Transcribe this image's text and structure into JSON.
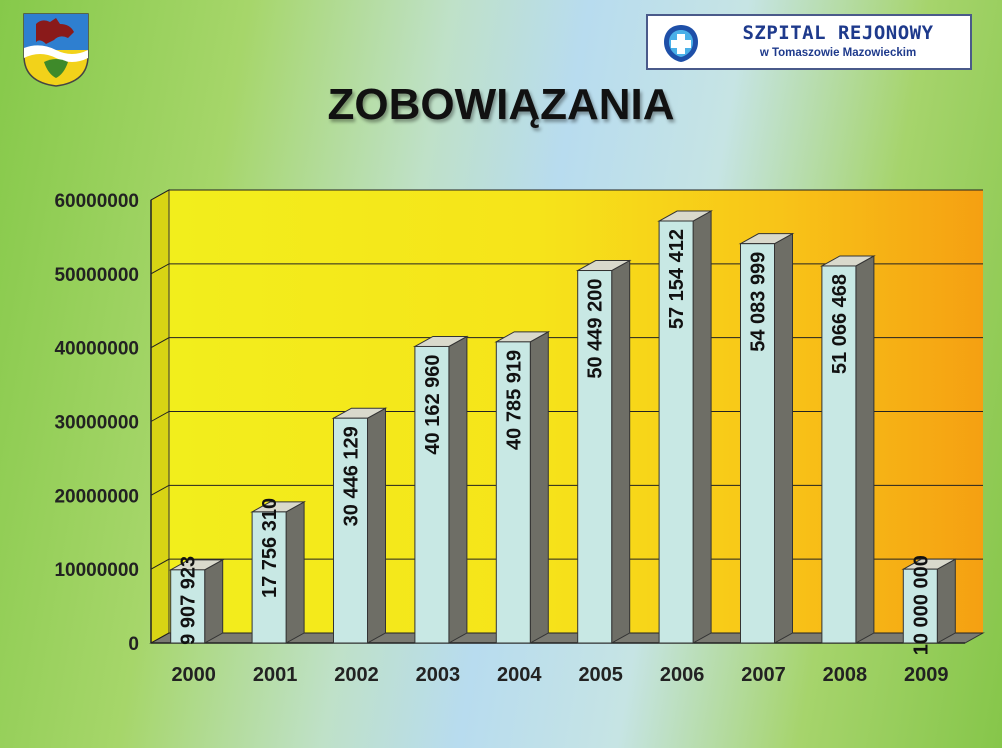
{
  "header": {
    "title": "ZOBOWIĄZANIA",
    "logo_line1": "SZPITAL REJONOWY",
    "logo_line2": "w Tomaszowie Mazowieckim",
    "crest_icon": "county-coat-of-arms-icon",
    "logo_icon": "hospital-cross-logo-icon"
  },
  "chart_data": {
    "type": "bar",
    "title": "ZOBOWIĄZANIA",
    "xlabel": "",
    "ylabel": "",
    "categories": [
      "2000",
      "2001",
      "2002",
      "2003",
      "2004",
      "2005",
      "2006",
      "2007",
      "2008",
      "2009"
    ],
    "values": [
      9907923,
      17756310,
      30446129,
      40162960,
      40785919,
      50449200,
      57154412,
      54083999,
      51066468,
      10000000
    ],
    "value_labels": [
      "9 907 923",
      "17 756 310",
      "30 446 129",
      "40 162 960",
      "40 785 919",
      "50 449 200",
      "57 154 412",
      "54 083 999",
      "51 066 468",
      "10 000 000"
    ],
    "y_ticks": [
      0,
      10000000,
      20000000,
      30000000,
      40000000,
      50000000,
      60000000
    ],
    "y_tick_labels": [
      "0",
      "10000000",
      "20000000",
      "30000000",
      "40000000",
      "50000000",
      "60000000"
    ],
    "ylim": [
      0,
      60000000
    ],
    "grid": true,
    "legend": "none",
    "style": "3d-column",
    "colors": {
      "bar_front": "#c8e8e4",
      "bar_side": "#6e6e66",
      "bar_top": "#d9d9cc",
      "wall_left": "#f0ee1a",
      "wall_right": "#f6a514",
      "floor": "#7a7a72",
      "gridline": "#222222"
    }
  }
}
